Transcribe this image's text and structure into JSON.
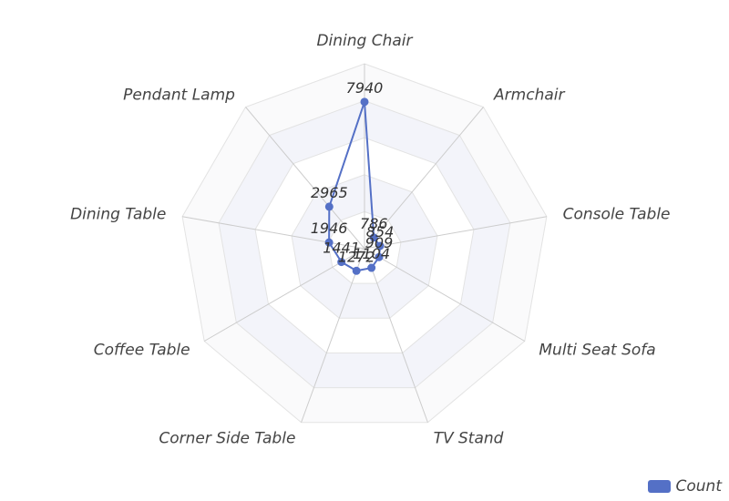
{
  "chart_data": {
    "type": "radar",
    "categories": [
      "Dining Chair",
      "Armchair",
      "Console Table",
      "Multi Seat Sofa",
      "TV Stand",
      "Corner Side Table",
      "Coffee Table",
      "Dining Table",
      "Pendant Lamp"
    ],
    "series": [
      {
        "name": "Count",
        "values": [
          7940,
          786,
          854,
          909,
          1104,
          1272,
          1441,
          1946,
          2965
        ],
        "color": "#5470c6"
      }
    ],
    "radius_max": 10000,
    "rings": 5,
    "grid": true
  },
  "legend": {
    "label": "Count",
    "color": "#5470c6",
    "position": "bottom-right"
  }
}
